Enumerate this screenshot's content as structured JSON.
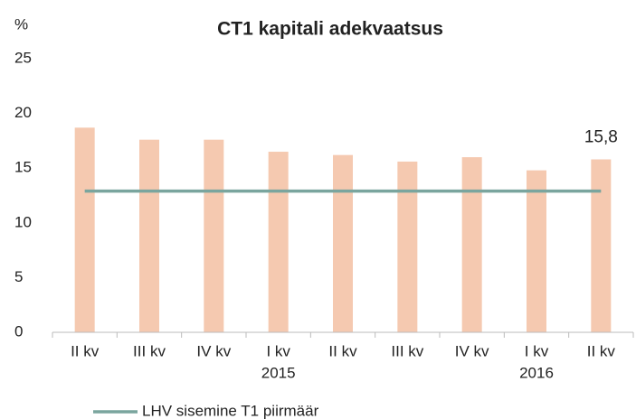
{
  "chart_data": {
    "type": "bar",
    "title": "CT1 kapitali adekvaatsus",
    "y_axis_label": "%",
    "categories": [
      "II kv",
      "III kv",
      "IV kv",
      "I kv",
      "II kv",
      "III kv",
      "IV kv",
      "I kv",
      "II kv"
    ],
    "year_labels": [
      null,
      null,
      null,
      "2015",
      null,
      null,
      null,
      "2016",
      null
    ],
    "values": [
      18.7,
      17.6,
      17.6,
      16.5,
      16.2,
      15.6,
      16.0,
      14.8,
      15.8
    ],
    "value_labels": [
      null,
      null,
      null,
      null,
      null,
      null,
      null,
      null,
      "15,8"
    ],
    "color": "#f5c9b0",
    "series": [
      {
        "name": "LHV sisemine T1 piirmäär",
        "type": "line",
        "color": "#7aa59e",
        "values": [
          12.9,
          12.9,
          12.9,
          12.9,
          12.9,
          12.9,
          12.9,
          12.9,
          12.9
        ]
      }
    ],
    "ylim": [
      0,
      25
    ],
    "yticks": [
      0,
      5,
      10,
      15,
      20,
      25
    ],
    "grid": false
  }
}
